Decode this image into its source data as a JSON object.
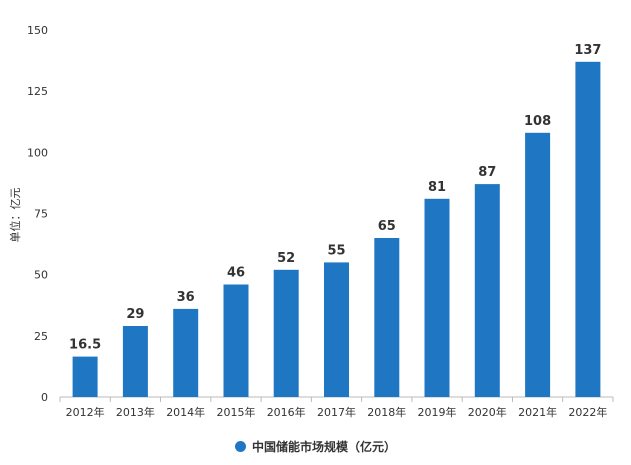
{
  "chart_data": {
    "type": "bar",
    "categories": [
      "2012年",
      "2013年",
      "2014年",
      "2015年",
      "2016年",
      "2017年",
      "2018年",
      "2019年",
      "2020年",
      "2021年",
      "2022年"
    ],
    "series": [
      {
        "name": "中国储能市场规模（亿元）",
        "values": [
          16.5,
          29,
          36,
          46,
          52,
          55,
          65,
          81,
          87,
          108,
          137
        ],
        "labels": [
          "16.5",
          "29",
          "36",
          "46",
          "52",
          "55",
          "65",
          "81",
          "87",
          "108",
          "137"
        ]
      }
    ],
    "ylabel": "单位：亿元",
    "ylim": [
      0,
      150
    ],
    "yticks": [
      0,
      25,
      50,
      75,
      100,
      125,
      150
    ],
    "ytick_labels": [
      "0",
      "25",
      "50",
      "75",
      "100",
      "125",
      "150"
    ],
    "grid": false,
    "legend_position": "bottom-center",
    "colors": {
      "bar": "#1f77c4",
      "axis": "#bbbbbb",
      "text": "#333333"
    }
  }
}
